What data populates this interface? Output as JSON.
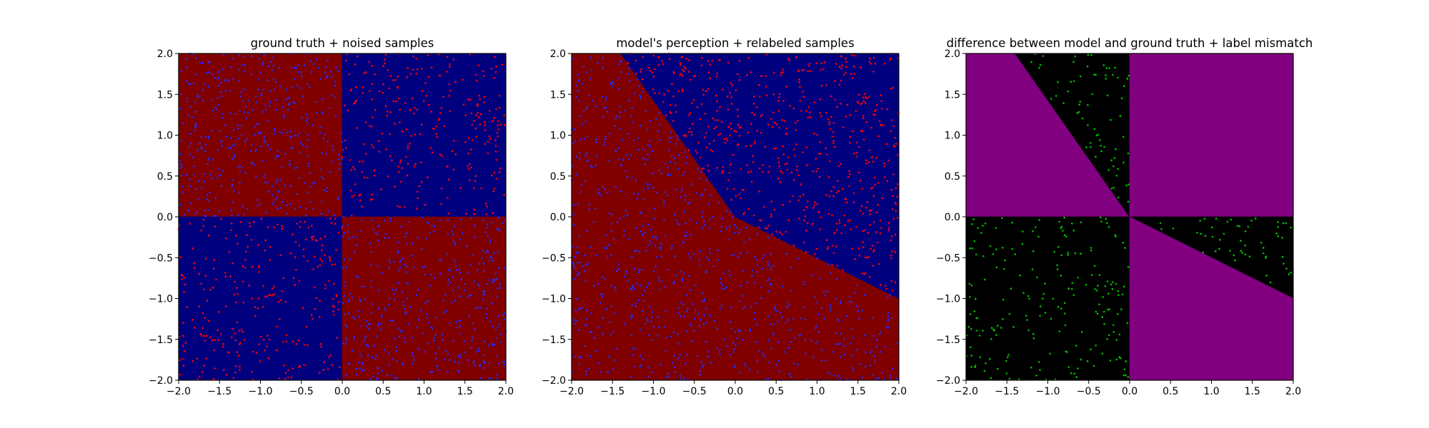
{
  "figure": {
    "colors": {
      "class_red_region": "#800000",
      "class_blue_region": "#00007f",
      "red_sample": "#ff0000",
      "blue_sample": "#1f2fff",
      "diff_region": "#800080",
      "agree_region": "#000000",
      "mismatch_sample": "#00c000"
    }
  },
  "chart_data": [
    {
      "type": "scatter",
      "title": "ground truth + noised samples",
      "xlabel": "",
      "ylabel": "",
      "xlim": [
        -2.0,
        2.0
      ],
      "ylim": [
        -2.0,
        2.0
      ],
      "xticks": [
        "−2.0",
        "−1.5",
        "−1.0",
        "−0.5",
        "0.0",
        "0.5",
        "1.0",
        "1.5",
        "2.0"
      ],
      "yticks": [
        "−2.0",
        "−1.5",
        "−1.0",
        "−0.5",
        "0.0",
        "0.5",
        "1.0",
        "1.5",
        "2.0"
      ],
      "grid": false,
      "background_regions": [
        {
          "polygon": [
            [
              -2,
              0
            ],
            [
              0,
              0
            ],
            [
              0,
              2
            ],
            [
              -2,
              2
            ]
          ],
          "color": "#800000"
        },
        {
          "polygon": [
            [
              0,
              0
            ],
            [
              2,
              0
            ],
            [
              2,
              2
            ],
            [
              0,
              2
            ]
          ],
          "color": "#00007f"
        },
        {
          "polygon": [
            [
              -2,
              -2
            ],
            [
              0,
              -2
            ],
            [
              0,
              0
            ],
            [
              -2,
              0
            ]
          ],
          "color": "#00007f"
        },
        {
          "polygon": [
            [
              0,
              -2
            ],
            [
              2,
              -2
            ],
            [
              2,
              0
            ],
            [
              0,
              0
            ]
          ],
          "color": "#800000"
        }
      ],
      "series": [
        {
          "color": "#ff0000",
          "n_points": 560,
          "regions": [
            [
              0,
              2,
              0,
              2
            ],
            [
              -2,
              0,
              -2,
              0
            ]
          ],
          "x": [],
          "y": []
        },
        {
          "color": "#1f2fff",
          "n_points": 840,
          "regions": [
            [
              -2,
              0,
              0,
              2
            ],
            [
              0,
              2,
              -2,
              0
            ]
          ],
          "x": [],
          "y": []
        }
      ]
    },
    {
      "type": "scatter",
      "title": "model's perception + relabeled samples",
      "xlabel": "",
      "ylabel": "",
      "xlim": [
        -2.0,
        2.0
      ],
      "ylim": [
        -2.0,
        2.0
      ],
      "xticks": [
        "−2.0",
        "−1.5",
        "−1.0",
        "−0.5",
        "0.0",
        "0.5",
        "1.0",
        "1.5",
        "2.0"
      ],
      "yticks": [
        "−2.0",
        "−1.5",
        "−1.0",
        "−0.5",
        "0.0",
        "0.5",
        "1.0",
        "1.5",
        "2.0"
      ],
      "grid": false,
      "background_regions": [
        {
          "polygon": [
            [
              -2,
              -2
            ],
            [
              2,
              -2
            ],
            [
              2,
              -1
            ],
            [
              0,
              0
            ],
            [
              -1.4,
              2
            ],
            [
              -2,
              2
            ]
          ],
          "color": "#800000"
        },
        {
          "polygon": [
            [
              -1.4,
              2
            ],
            [
              2,
              2
            ],
            [
              2,
              -1
            ],
            [
              0,
              0
            ]
          ],
          "color": "#00007f"
        }
      ],
      "series": [
        {
          "color": "#ff0000",
          "n_points": 600,
          "region_name": "upper-right wedge",
          "x": [],
          "y": []
        },
        {
          "color": "#1f2fff",
          "n_points": 800,
          "region_name": "lower-left region",
          "x": [],
          "y": []
        }
      ]
    },
    {
      "type": "scatter",
      "title": "difference between model and ground truth + label mismatch",
      "xlabel": "",
      "ylabel": "",
      "xlim": [
        -2.0,
        2.0
      ],
      "ylim": [
        -2.0,
        2.0
      ],
      "xticks": [
        "−2.0",
        "−1.5",
        "−1.0",
        "−0.5",
        "0.0",
        "0.5",
        "1.0",
        "1.5",
        "2.0"
      ],
      "yticks": [
        "−2.0",
        "−1.5",
        "−1.0",
        "−0.5",
        "0.0",
        "0.5",
        "1.0",
        "1.5",
        "2.0"
      ],
      "grid": false,
      "background_regions": [
        {
          "polygon": [
            [
              -2,
              0
            ],
            [
              0,
              0
            ],
            [
              -1.4,
              2
            ],
            [
              -2,
              2
            ]
          ],
          "color": "#800080"
        },
        {
          "polygon": [
            [
              -1.4,
              2
            ],
            [
              0,
              2
            ],
            [
              0,
              0
            ]
          ],
          "color": "#000000"
        },
        {
          "polygon": [
            [
              0,
              0
            ],
            [
              2,
              0
            ],
            [
              2,
              2
            ],
            [
              0,
              2
            ]
          ],
          "color": "#800080"
        },
        {
          "polygon": [
            [
              -2,
              -2
            ],
            [
              0,
              -2
            ],
            [
              0,
              0
            ],
            [
              -2,
              0
            ]
          ],
          "color": "#000000"
        },
        {
          "polygon": [
            [
              0,
              0
            ],
            [
              2,
              0
            ],
            [
              2,
              -1
            ]
          ],
          "color": "#000000"
        },
        {
          "polygon": [
            [
              0,
              -2
            ],
            [
              2,
              -2
            ],
            [
              2,
              -1
            ],
            [
              0,
              0
            ]
          ],
          "color": "#800080"
        }
      ],
      "series": [
        {
          "color": "#00c000",
          "n_points": 330,
          "region_name": "black mismatch areas",
          "x": [],
          "y": []
        }
      ]
    }
  ]
}
